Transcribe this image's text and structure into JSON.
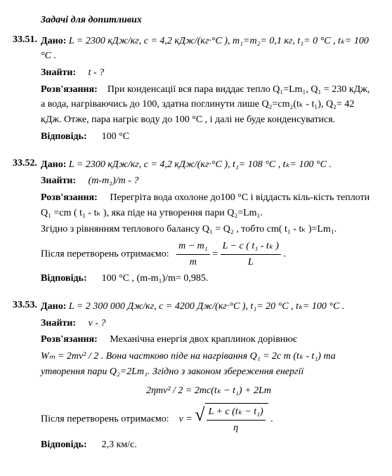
{
  "section_title": "Задачі для допитливих",
  "p1": {
    "num": "33.51.",
    "dano_label": "Дано:",
    "dano": "L = 2300 кДж/кг, c = 4,2 кДж/(кг·°C ), m₁=m₂= 0,1 кг, t₁= 0 °C , tₖ= 100 °C .",
    "znaity_label": "Знайти:",
    "znaity": "t - ?",
    "rozv_label": "Розв'язання:",
    "rozv": "При конденсації вся пара виддає тепло Q₁=Lm₁, Q₁ = 230 кДж, а вода, нагріваючись до 100,  здатна поглинути лише Q₂=cm₂(tₖ - t₁),  Q₂= 42 кДж. Отже, пара нагріє воду до 100 °C , і далі не буде конденсуватися.",
    "vidp_label": "Відповідь:",
    "vidp": "100 °C"
  },
  "p2": {
    "num": "33.52.",
    "dano_label": "Дано:",
    "dano": "L = 2300 кДж/кг, c = 4,2 кДж/(кг·°C ),  t₁= 108 °C , tₖ= 100 °C .",
    "znaity_label": "Знайти:",
    "znaity": "(m-m₁)/m  -  ?",
    "rozv_label": "Розв'язання:",
    "rozv1": "Перегріта вода охолоне до100 °C  і віддасть кіль-кість теплоти Q₁ =cm ( t₁ - tₖ ),  яка піде на утворення пари Q₂=Lm₁.",
    "rozv2": "Згідно з рівнянням теплового балансу Q₁ = Q₂ , тобто  cm( t₁ - tₖ )=Lm₁.",
    "after_label": "Після перетворень отримаємо:",
    "frac_num_l": "m − m₁",
    "frac_den_l": "m",
    "frac_num_r": "L − c ( t₁ - tₖ )",
    "frac_den_r": "L",
    "vidp_label": "Відповідь:",
    "vidp": "100 °C , (m-m₁)/m= 0,985."
  },
  "p3": {
    "num": "33.53.",
    "dano_label": "Дано:",
    "dano": "L = 2 300 000 Дж/кг, c = 4200 Дж/(кг·°C ),  t₁= 20 °C , tₖ= 100 °C .",
    "znaity_label": "Знайти:",
    "znaity": "v - ?",
    "rozv_label": "Розв'язання:",
    "rozv1": "Механічна енергія двох краплинок дорівнює",
    "rozv2": "Wₘ = 2mv² / 2 .  Вона частково піде на нагрівання  Q₁ = 2c m (tₖ - t₁)  та утворення пари  Q₂=2Lm₁.  Згідно з законом збереження енергії",
    "eq_center": "2ηmv² / 2 = 2mc(tₖ − t₁) + 2Lm",
    "after_label": "Після перетворень отримаємо:",
    "v_eq": "v =",
    "sqrt_num": "L + c (tₖ − t₁)",
    "sqrt_den": "η",
    "vidp_label": "Відповідь:",
    "vidp": "2,3 км/с."
  }
}
